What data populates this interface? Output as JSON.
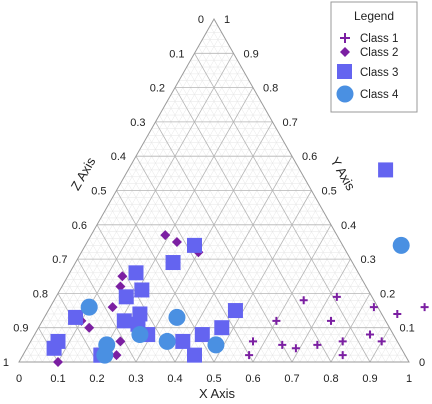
{
  "chart_data": {
    "type": "scatter",
    "subtype": "ternary",
    "axes": {
      "bottom": {
        "label": "X Axis",
        "ticks": [
          "0",
          "0.1",
          "0.2",
          "0.3",
          "0.4",
          "0.5",
          "0.6",
          "0.7",
          "0.8",
          "0.9",
          "1"
        ]
      },
      "right": {
        "label": "Y Axis",
        "ticks": [
          "0",
          "0.1",
          "0.2",
          "0.3",
          "0.4",
          "0.5",
          "0.6",
          "0.7",
          "0.8",
          "0.9",
          "1"
        ]
      },
      "left": {
        "label": "Z Axis",
        "ticks": [
          "0",
          "0.1",
          "0.2",
          "0.3",
          "0.4",
          "0.5",
          "0.6",
          "0.7",
          "0.8",
          "0.9",
          "1"
        ]
      }
    },
    "grid": true,
    "legend": {
      "title": "Legend",
      "position": "top-right"
    },
    "series": [
      {
        "name": "Class 1",
        "marker": "plus",
        "color": "#7B1FA2",
        "points": [
          {
            "x": 0.74,
            "y": 0.05
          },
          {
            "x": 0.8,
            "y": 0.06
          },
          {
            "x": 0.86,
            "y": 0.08
          },
          {
            "x": 0.9,
            "y": 0.06
          },
          {
            "x": 0.82,
            "y": 0.02
          },
          {
            "x": 0.74,
            "y": 0.12
          },
          {
            "x": 0.83,
            "y": 0.16
          },
          {
            "x": 0.9,
            "y": 0.14
          },
          {
            "x": 0.6,
            "y": 0.12
          },
          {
            "x": 0.64,
            "y": 0.18
          },
          {
            "x": 0.65,
            "y": 0.05
          },
          {
            "x": 0.69,
            "y": 0.04
          },
          {
            "x": 0.72,
            "y": 0.19
          },
          {
            "x": 0.57,
            "y": 0.06
          },
          {
            "x": 0.58,
            "y": 0.02
          },
          {
            "x": 0.96,
            "y": 0.16
          }
        ]
      },
      {
        "name": "Class 2",
        "marker": "diamond",
        "color": "#7B1FA2",
        "points": [
          {
            "x": 0.1,
            "y": 0.0
          },
          {
            "x": 0.1,
            "y": 0.12
          },
          {
            "x": 0.13,
            "y": 0.1
          },
          {
            "x": 0.24,
            "y": 0.02
          },
          {
            "x": 0.23,
            "y": 0.06
          },
          {
            "x": 0.16,
            "y": 0.16
          },
          {
            "x": 0.15,
            "y": 0.22
          },
          {
            "x": 0.14,
            "y": 0.25
          },
          {
            "x": 0.23,
            "y": 0.35
          },
          {
            "x": 0.19,
            "y": 0.37
          },
          {
            "x": 0.3,
            "y": 0.32
          }
        ]
      },
      {
        "name": "Class 3",
        "marker": "square",
        "color": "#6464F0",
        "points": [
          {
            "x": 0.66,
            "y": 0.56
          },
          {
            "x": 0.28,
            "y": 0.34
          },
          {
            "x": 0.25,
            "y": 0.29
          },
          {
            "x": 0.17,
            "y": 0.26
          },
          {
            "x": 0.21,
            "y": 0.21
          },
          {
            "x": 0.18,
            "y": 0.19
          },
          {
            "x": 0.24,
            "y": 0.14
          },
          {
            "x": 0.08,
            "y": 0.13
          },
          {
            "x": 0.25,
            "y": 0.11
          },
          {
            "x": 0.21,
            "y": 0.12
          },
          {
            "x": 0.29,
            "y": 0.08
          },
          {
            "x": 0.07,
            "y": 0.06
          },
          {
            "x": 0.07,
            "y": 0.04
          },
          {
            "x": 0.2,
            "y": 0.02
          },
          {
            "x": 0.2,
            "y": 0.02
          },
          {
            "x": 0.47,
            "y": 0.1
          },
          {
            "x": 0.48,
            "y": 0.15
          },
          {
            "x": 0.43,
            "y": 0.08
          },
          {
            "x": 0.39,
            "y": 0.06
          },
          {
            "x": 0.44,
            "y": 0.02
          }
        ]
      },
      {
        "name": "Class 4",
        "marker": "circle",
        "color": "#4A90E2",
        "points": [
          {
            "x": 0.1,
            "y": 0.16
          },
          {
            "x": 0.81,
            "y": 0.34
          },
          {
            "x": 0.34,
            "y": 0.13
          },
          {
            "x": 0.27,
            "y": 0.08
          },
          {
            "x": 0.2,
            "y": 0.05
          },
          {
            "x": 0.21,
            "y": 0.02
          },
          {
            "x": 0.35,
            "y": 0.06
          },
          {
            "x": 0.48,
            "y": 0.05
          }
        ]
      }
    ]
  }
}
